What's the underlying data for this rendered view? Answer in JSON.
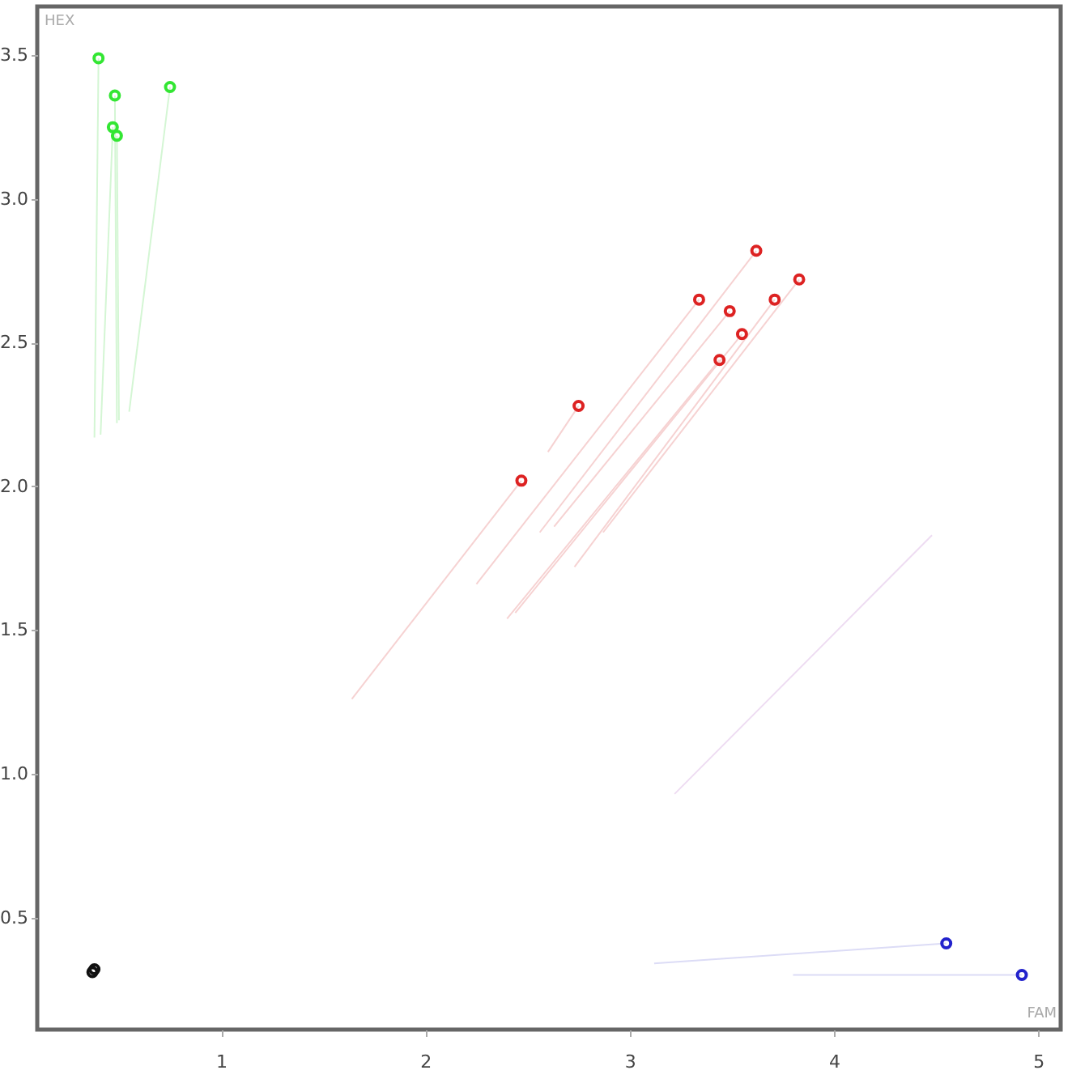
{
  "chart_data": {
    "type": "scatter",
    "xlabel": "FAM",
    "ylabel": "HEX",
    "xlim": [
      0.1,
      5.11
    ],
    "ylim": [
      0.11,
      3.67
    ],
    "xticks": [
      1,
      2,
      3,
      4,
      5
    ],
    "yticks": [
      0.5,
      {
        "value": 1.0,
        "label": "1.0"
      },
      1.5,
      {
        "value": 2.0,
        "label": "2.0"
      },
      2.5,
      {
        "value": 3.0,
        "label": "3.0"
      },
      3.5
    ],
    "grid": false,
    "marker": "circle",
    "line_style": "solid",
    "series": [
      {
        "type": "line",
        "marker": "none",
        "color": "#d4f6d4",
        "x": [
          0.38,
          0.4
        ],
        "values": [
          2.17,
          3.49
        ]
      },
      {
        "type": "line",
        "marker": "none",
        "color": "#d4f6d4",
        "x": [
          0.49,
          0.48
        ],
        "values": [
          2.22,
          3.36
        ]
      },
      {
        "type": "line",
        "marker": "none",
        "color": "#d4f6d4",
        "x": [
          0.41,
          0.47
        ],
        "values": [
          2.18,
          3.25
        ]
      },
      {
        "type": "line",
        "marker": "none",
        "color": "#d4f6d4",
        "x": [
          0.5,
          0.49
        ],
        "values": [
          2.23,
          3.22
        ]
      },
      {
        "type": "line",
        "marker": "none",
        "color": "#d4f6d4",
        "x": [
          0.55,
          0.75
        ],
        "values": [
          2.26,
          3.39
        ]
      },
      {
        "type": "line",
        "marker": "none",
        "color": "#f6d2d2",
        "x": [
          1.64,
          2.47
        ],
        "values": [
          1.26,
          2.02
        ]
      },
      {
        "type": "line",
        "marker": "none",
        "color": "#f6d2d2",
        "x": [
          2.6,
          2.75
        ],
        "values": [
          2.12,
          2.28
        ]
      },
      {
        "type": "line",
        "marker": "none",
        "color": "#f6d2d2",
        "x": [
          2.25,
          3.34
        ],
        "values": [
          1.66,
          2.65
        ]
      },
      {
        "type": "line",
        "marker": "none",
        "color": "#f6d2d2",
        "x": [
          2.56,
          3.62
        ],
        "values": [
          1.84,
          2.82
        ]
      },
      {
        "type": "line",
        "marker": "none",
        "color": "#f6d2d2",
        "x": [
          2.63,
          3.49
        ],
        "values": [
          1.86,
          2.61
        ]
      },
      {
        "type": "line",
        "marker": "none",
        "color": "#f6d2d2",
        "x": [
          2.44,
          3.55
        ],
        "values": [
          1.56,
          2.53
        ]
      },
      {
        "type": "line",
        "marker": "none",
        "color": "#f6d2d2",
        "x": [
          2.4,
          3.44
        ],
        "values": [
          1.54,
          2.44
        ]
      },
      {
        "type": "line",
        "marker": "none",
        "color": "#f6d2d2",
        "x": [
          2.73,
          3.71
        ],
        "values": [
          1.72,
          2.65
        ]
      },
      {
        "type": "line",
        "marker": "none",
        "color": "#f6d2d2",
        "x": [
          2.87,
          3.83
        ],
        "values": [
          1.84,
          2.72
        ]
      },
      {
        "type": "line",
        "marker": "none",
        "color": "#eedcf2",
        "x": [
          3.22,
          4.48
        ],
        "values": [
          0.93,
          1.83
        ]
      },
      {
        "type": "line",
        "marker": "none",
        "color": "#dcdcf6",
        "x": [
          3.12,
          4.55
        ],
        "values": [
          0.34,
          0.41
        ]
      },
      {
        "type": "line",
        "marker": "none",
        "color": "#dcdcf6",
        "x": [
          3.8,
          4.92
        ],
        "values": [
          0.3,
          0.3
        ]
      },
      {
        "color": "#33e633",
        "x": [
          0.4,
          0.48,
          0.47,
          0.49,
          0.75
        ],
        "values": [
          3.49,
          3.36,
          3.25,
          3.22,
          3.39
        ]
      },
      {
        "color": "#dd2222",
        "x": [
          2.47,
          2.75,
          3.34,
          3.62,
          3.49,
          3.55,
          3.44,
          3.71,
          3.83
        ],
        "values": [
          2.02,
          2.28,
          2.65,
          2.82,
          2.61,
          2.53,
          2.44,
          2.65,
          2.72
        ]
      },
      {
        "color": "#2222cc",
        "x": [
          4.55,
          4.92
        ],
        "values": [
          0.41,
          0.3
        ]
      },
      {
        "color": "#111111",
        "x": [
          0.37,
          0.38
        ],
        "values": [
          0.31,
          0.32
        ]
      }
    ]
  }
}
